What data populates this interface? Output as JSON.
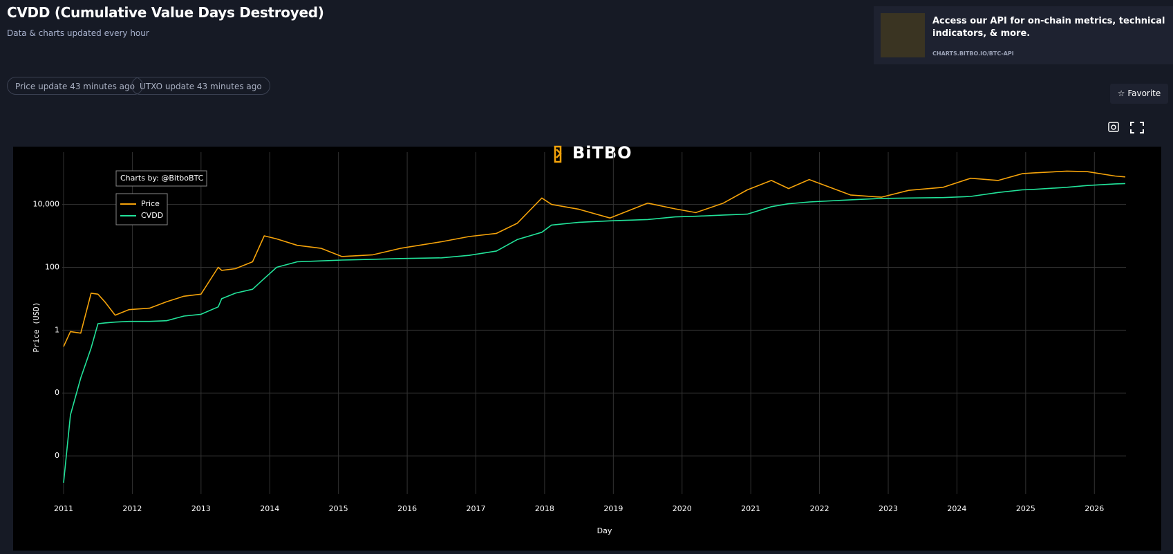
{
  "header": {
    "title": "CVDD (Cumulative Value Days Destroyed)",
    "subtitle": "Data & charts updated every hour"
  },
  "badges": [
    "Price update 43 minutes ago",
    "UTXO update 43 minutes ago"
  ],
  "api_card": {
    "title": "Access our API for on-chain metrics, technical indicators, & more.",
    "url": "CHARTS.BITBO.IO/BTC-API"
  },
  "favorite": "Favorite",
  "chart_data": {
    "type": "line",
    "watermark": "BiTBO",
    "annotation": "Charts by: @BitboBTC",
    "x_label": "Day",
    "y_label": "Price (USD)",
    "log_y": true,
    "grid": true,
    "legend": "top-left",
    "xlim": [
      2010.98,
      2026.46
    ],
    "xticks": [
      2011,
      2012,
      2013,
      2014,
      2015,
      2016,
      2017,
      2018,
      2019,
      2020,
      2021,
      2022,
      2023,
      2024,
      2025,
      2026
    ],
    "ylim": [
      6.2e-06,
      460000
    ],
    "yticks": [
      {
        "value": 10000,
        "label": "10,000"
      },
      100,
      1,
      {
        "value": 0.01,
        "label": "0"
      },
      {
        "value": 0.0001,
        "label": "0"
      }
    ],
    "x": [
      2011.0,
      2011.1,
      2011.25,
      2011.4,
      2011.5,
      2011.6,
      2011.75,
      2011.95,
      2012.25,
      2012.5,
      2012.75,
      2013.0,
      2013.25,
      2013.3,
      2013.5,
      2013.75,
      2013.92,
      2014.1,
      2014.4,
      2014.75,
      2015.05,
      2015.5,
      2015.9,
      2016.5,
      2016.9,
      2017.3,
      2017.6,
      2017.96,
      2018.1,
      2018.5,
      2018.95,
      2019.5,
      2019.9,
      2020.2,
      2020.6,
      2020.95,
      2021.3,
      2021.55,
      2021.85,
      2022.45,
      2022.9,
      2023.3,
      2023.8,
      2024.2,
      2024.6,
      2024.95,
      2025.1,
      2025.6,
      2025.9,
      2026.3,
      2026.45
    ],
    "series": [
      {
        "name": "Price",
        "color": "#f5a30a",
        "values": [
          0.3,
          0.9,
          0.8,
          15,
          14,
          8,
          3,
          4.5,
          5,
          8,
          12,
          14,
          100,
          80,
          90,
          150,
          1000,
          800,
          500,
          400,
          220,
          250,
          400,
          650,
          950,
          1200,
          2500,
          16000,
          10000,
          7000,
          3700,
          11000,
          7200,
          5500,
          11000,
          29000,
          58000,
          32000,
          62000,
          20000,
          17000,
          28000,
          35000,
          68000,
          58000,
          95000,
          100000,
          115000,
          110000,
          80000,
          75000
        ]
      },
      {
        "name": "CVDD",
        "color": "#22e39a",
        "values": [
          1.4e-05,
          0.002,
          0.03,
          0.27,
          1.6,
          1.7,
          1.8,
          1.9,
          1.9,
          2,
          2.8,
          3.2,
          5.5,
          10,
          15,
          20,
          44,
          100,
          150,
          160,
          170,
          180,
          190,
          200,
          240,
          330,
          760,
          1300,
          2200,
          2700,
          3000,
          3300,
          4000,
          4200,
          4600,
          4900,
          8500,
          10500,
          12000,
          14000,
          15500,
          16000,
          16500,
          18000,
          24000,
          29000,
          30000,
          35000,
          40000,
          45000,
          46000
        ]
      }
    ]
  }
}
